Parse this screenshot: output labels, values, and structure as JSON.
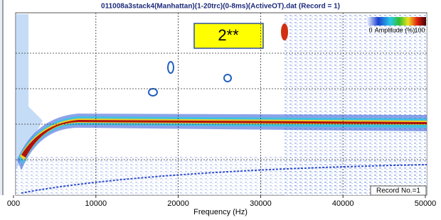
{
  "chart_data": {
    "type": "heatmap",
    "title": "011008a3stack4(Manhattan)(1-20trc)(0-8ms)(ActiveOT).dat (Record = 1)",
    "xlabel": "Frequency (Hz)",
    "xlim": [
      0,
      50000
    ],
    "xticks": [
      {
        "value": 0,
        "label": "000"
      },
      10000,
      20000,
      30000,
      40000,
      50000
    ],
    "grid": true,
    "annotation": "2**",
    "colorbar": {
      "label": "Amplitude (%)",
      "ticks": [
        0,
        100
      ]
    },
    "record_label": "Record No.=1"
  }
}
